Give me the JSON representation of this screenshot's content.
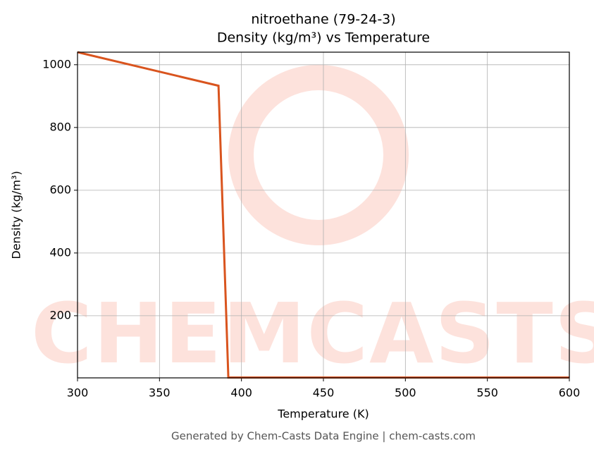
{
  "chart_data": {
    "type": "line",
    "title": "nitroethane (79-24-3)",
    "subtitle": "Density (kg/m³) vs Temperature",
    "x_label": "Temperature (K)",
    "y_label": "Density (kg/m³)",
    "footer": "Generated by Chem-Casts Data Engine | chem-casts.com",
    "watermark": "CHEMCASTS",
    "x": [
      300,
      386,
      392,
      600
    ],
    "series": [
      {
        "name": "Density",
        "color": "#d9541e",
        "values": [
          1040,
          933,
          3,
          3
        ]
      }
    ],
    "xlim": [
      300,
      600
    ],
    "xticks": [
      300,
      350,
      400,
      450,
      500,
      550,
      600
    ],
    "ylim": [
      2,
      1040
    ],
    "yticks": [
      200,
      400,
      600,
      800,
      1000
    ],
    "grid": true
  }
}
